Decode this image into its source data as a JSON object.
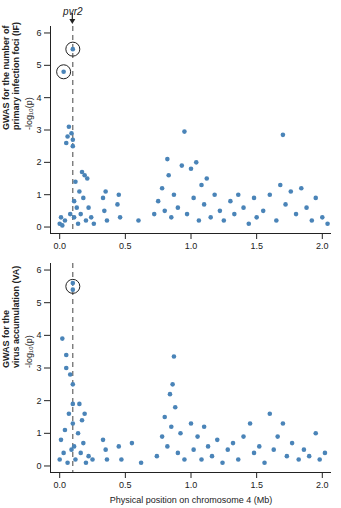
{
  "chart_data": [
    {
      "type": "scatter",
      "y_title": [
        "GWAS for the number of",
        "primary infection foci (IF)"
      ],
      "ylabel": "-log₁₀(p)",
      "xlabel": null,
      "color": "#4a84b8",
      "marker": "circle",
      "x": [
        0.0,
        0.01,
        0.02,
        0.03,
        0.04,
        0.05,
        0.06,
        0.07,
        0.08,
        0.09,
        0.1,
        0.1,
        0.1,
        0.11,
        0.11,
        0.12,
        0.13,
        0.14,
        0.15,
        0.16,
        0.17,
        0.18,
        0.19,
        0.2,
        0.21,
        0.22,
        0.24,
        0.26,
        0.33,
        0.34,
        0.35,
        0.36,
        0.44,
        0.45,
        0.46,
        0.6,
        0.72,
        0.75,
        0.78,
        0.8,
        0.82,
        0.83,
        0.85,
        0.87,
        0.9,
        0.93,
        0.95,
        0.97,
        1.0,
        1.02,
        1.04,
        1.06,
        1.08,
        1.1,
        1.12,
        1.15,
        1.18,
        1.22,
        1.25,
        1.3,
        1.33,
        1.36,
        1.4,
        1.44,
        1.48,
        1.5,
        1.55,
        1.6,
        1.65,
        1.68,
        1.7,
        1.72,
        1.76,
        1.8,
        1.84,
        1.88,
        1.92,
        1.95,
        2.0,
        2.04
      ],
      "values": [
        0.1,
        0.3,
        0.05,
        4.8,
        0.2,
        2.6,
        2.8,
        3.1,
        0.4,
        2.9,
        5.5,
        2.7,
        2.5,
        0.8,
        0.3,
        1.4,
        0.6,
        0.1,
        1.1,
        0.4,
        1.7,
        0.9,
        1.6,
        0.2,
        1.5,
        0.6,
        0.3,
        0.1,
        0.9,
        0.5,
        1.1,
        0.2,
        0.7,
        1.0,
        0.3,
        0.2,
        0.4,
        0.8,
        1.2,
        0.5,
        2.1,
        1.6,
        0.3,
        1.0,
        0.6,
        1.9,
        2.95,
        0.4,
        1.8,
        0.9,
        2.0,
        0.2,
        1.3,
        0.7,
        1.5,
        0.3,
        1.0,
        0.5,
        0.2,
        0.8,
        0.4,
        1.0,
        0.6,
        0.1,
        0.9,
        0.3,
        0.5,
        1.0,
        0.2,
        1.3,
        2.85,
        0.7,
        1.1,
        0.4,
        1.2,
        0.6,
        0.2,
        0.9,
        0.3,
        0.1
      ],
      "circled": {
        "x": [
          0.03,
          0.1
        ],
        "y": [
          4.8,
          5.5
        ]
      },
      "vline": 0.1,
      "annotation": {
        "text": "pvr2",
        "x": 0.1
      },
      "xlim": [
        -0.07,
        2.07
      ],
      "ylim": [
        -0.2,
        6.2
      ],
      "xticks": [
        {
          "value": 0,
          "label": "0.0"
        },
        {
          "value": 0.5,
          "label": "0.5"
        },
        {
          "value": 1,
          "label": "1.0"
        },
        {
          "value": 1.5,
          "label": "1.5"
        },
        {
          "value": 2,
          "label": "2.0"
        }
      ],
      "yticks": [
        0,
        1,
        2,
        3,
        4,
        5,
        6
      ],
      "grid": false
    },
    {
      "type": "scatter",
      "y_title": [
        "GWAS for the",
        "virus accumulation (VA)"
      ],
      "ylabel": "-log₁₀(p)",
      "xlabel": "Physical position on chromosome 4 (Mb)",
      "color": "#4a84b8",
      "marker": "circle",
      "x": [
        0.0,
        0.01,
        0.02,
        0.03,
        0.04,
        0.05,
        0.05,
        0.06,
        0.07,
        0.08,
        0.09,
        0.1,
        0.1,
        0.1,
        0.1,
        0.1,
        0.11,
        0.12,
        0.14,
        0.15,
        0.16,
        0.17,
        0.18,
        0.19,
        0.2,
        0.22,
        0.25,
        0.33,
        0.35,
        0.36,
        0.45,
        0.47,
        0.55,
        0.62,
        0.74,
        0.78,
        0.8,
        0.82,
        0.84,
        0.85,
        0.86,
        0.87,
        0.88,
        0.9,
        0.92,
        0.95,
        1.0,
        1.02,
        1.05,
        1.08,
        1.1,
        1.13,
        1.16,
        1.2,
        1.24,
        1.28,
        1.32,
        1.36,
        1.4,
        1.45,
        1.48,
        1.52,
        1.56,
        1.6,
        1.63,
        1.66,
        1.7,
        1.73,
        1.77,
        1.82,
        1.86,
        1.9,
        1.95,
        1.98,
        2.02
      ],
      "values": [
        0.2,
        0.8,
        3.9,
        0.4,
        1.1,
        3.4,
        3.0,
        0.1,
        1.6,
        2.8,
        0.5,
        5.4,
        5.6,
        2.5,
        1.9,
        1.3,
        0.6,
        0.2,
        1.0,
        1.9,
        0.4,
        1.4,
        0.7,
        1.6,
        0.1,
        0.3,
        0.2,
        0.8,
        0.5,
        0.2,
        0.6,
        0.2,
        0.7,
        0.1,
        0.3,
        0.9,
        1.5,
        0.6,
        2.2,
        1.2,
        2.5,
        3.35,
        1.8,
        0.4,
        1.0,
        0.2,
        1.3,
        0.5,
        0.9,
        0.2,
        1.2,
        0.6,
        0.3,
        0.8,
        0.1,
        0.5,
        0.7,
        0.2,
        0.9,
        1.3,
        0.4,
        0.6,
        0.1,
        1.6,
        0.5,
        0.9,
        1.3,
        0.3,
        0.7,
        0.2,
        0.5,
        0.3,
        1.0,
        0.2,
        0.4
      ],
      "circled": {
        "x": [
          0.1
        ],
        "y": [
          5.5
        ]
      },
      "vline": 0.1,
      "xlim": [
        -0.07,
        2.07
      ],
      "ylim": [
        -0.2,
        6.2
      ],
      "xticks": [
        {
          "value": 0,
          "label": "0.0"
        },
        {
          "value": 0.5,
          "label": "0.5"
        },
        {
          "value": 1,
          "label": "1.0"
        },
        {
          "value": 1.5,
          "label": "1.5"
        },
        {
          "value": 2,
          "label": "2.0"
        }
      ],
      "yticks": [
        0,
        1,
        2,
        3,
        4,
        5,
        6
      ],
      "grid": false
    }
  ]
}
